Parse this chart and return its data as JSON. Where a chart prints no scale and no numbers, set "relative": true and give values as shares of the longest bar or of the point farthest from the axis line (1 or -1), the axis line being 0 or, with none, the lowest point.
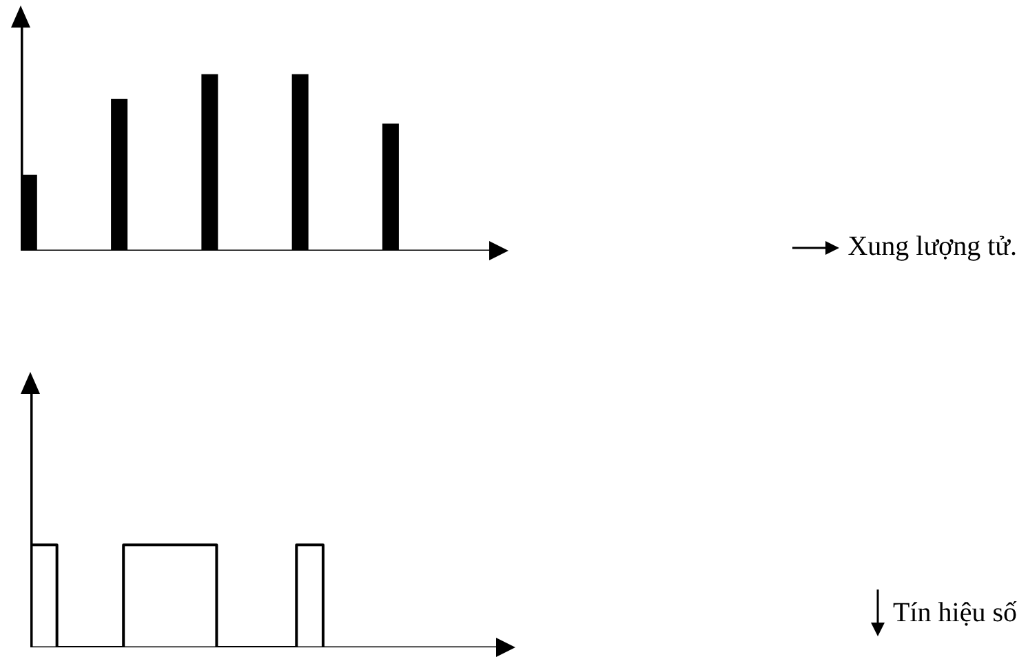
{
  "chart_data": [
    {
      "type": "bar",
      "relative": true,
      "categories": [
        null,
        null,
        null,
        null,
        null
      ],
      "values": [
        0.43,
        0.86,
        1,
        1,
        0.72
      ],
      "color": "#000000",
      "annotations": [
        "Xung lượng tử."
      ]
    },
    {
      "type": "step",
      "relative": true,
      "categories": [
        null,
        null,
        null,
        null,
        null,
        null,
        null,
        null,
        null,
        null,
        null,
        null,
        null,
        null,
        null,
        null,
        null,
        null,
        null,
        null,
        null,
        null,
        null,
        null,
        null,
        null,
        null,
        null,
        null,
        null,
        null,
        null,
        null,
        null,
        null,
        null
      ],
      "values": [
        1,
        1,
        0,
        0,
        0,
        0,
        0,
        1,
        1,
        1,
        1,
        1,
        1,
        1,
        0,
        0,
        0,
        0,
        0,
        0,
        1,
        1,
        0,
        null,
        null,
        null,
        null,
        null,
        null,
        null,
        null,
        null,
        null,
        null,
        null,
        null
      ],
      "color": "#000000",
      "annotations": [
        "Tín hiệu số"
      ]
    }
  ]
}
